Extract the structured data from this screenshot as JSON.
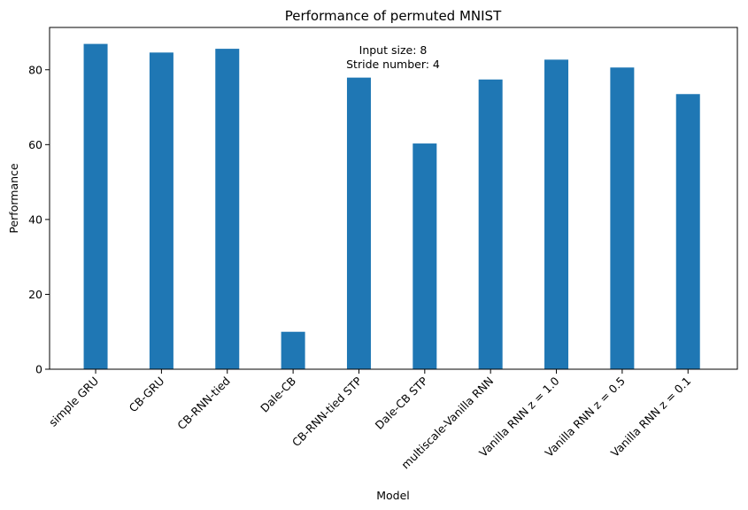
{
  "chart_data": {
    "type": "bar",
    "title": "Performance of permuted MNIST",
    "xlabel": "Model",
    "ylabel": "Performance",
    "categories": [
      "simple GRU",
      "CB-GRU",
      "CB-RNN-tied",
      "Dale-CB",
      "CB-RNN-tied STP",
      "Dale-CB STP",
      "multiscale-Vanilla RNN",
      "Vanilla RNN z = 1.0",
      "Vanilla RNN z = 0.5",
      "Vanilla RNN z = 0.1"
    ],
    "values": [
      86.9,
      84.6,
      85.6,
      10.0,
      77.9,
      60.3,
      77.4,
      82.7,
      80.6,
      73.5
    ],
    "ylim": [
      0,
      91.3
    ],
    "yticks": [
      0,
      20,
      40,
      60,
      80
    ],
    "bar_color": "#1f77b4",
    "annotation_lines": [
      "Input size: 8",
      "Stride number: 4"
    ],
    "grid": false,
    "legend": "none"
  }
}
